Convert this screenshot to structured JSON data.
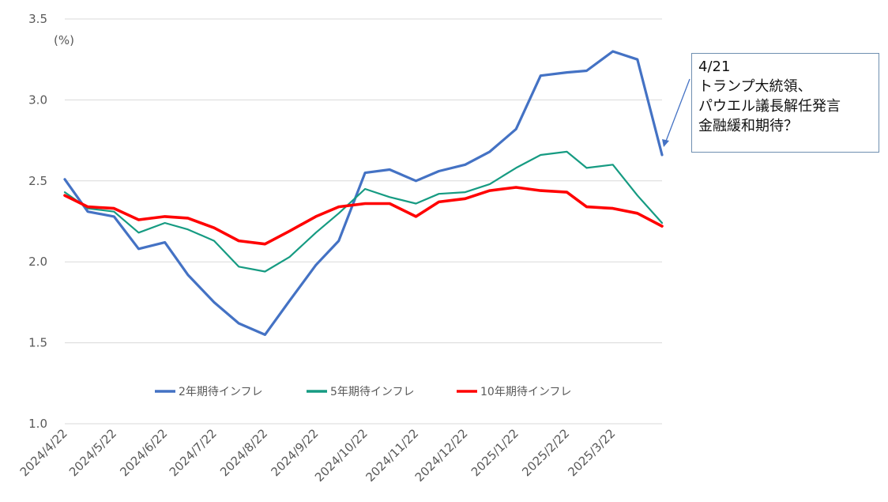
{
  "chart_data": {
    "type": "line",
    "unit_label": "(%)",
    "ylim": [
      1.0,
      3.5
    ],
    "yticks": [
      "3.5",
      "3.0",
      "2.5",
      "2.0",
      "1.5",
      "1.0"
    ],
    "grid": true,
    "legend_position": "bottom-inside",
    "x_tick_labels": [
      "2024/4/22",
      "2024/5/22",
      "2024/6/22",
      "2024/7/22",
      "2024/8/22",
      "2024/9/22",
      "2024/10/22",
      "2024/11/22",
      "2024/12/22",
      "2025/1/22",
      "2025/2/22",
      "2025/3/22"
    ],
    "x_sample_dates": [
      "2024/4/22",
      "2024/5/6",
      "2024/5/22",
      "2024/6/6",
      "2024/6/22",
      "2024/7/6",
      "2024/7/22",
      "2024/8/6",
      "2024/8/22",
      "2024/9/6",
      "2024/9/22",
      "2024/10/6",
      "2024/10/22",
      "2024/11/6",
      "2024/11/22",
      "2024/12/6",
      "2024/12/22",
      "2025/1/6",
      "2025/1/22",
      "2025/2/6",
      "2025/2/22",
      "2025/3/6",
      "2025/3/22",
      "2025/4/6",
      "2025/4/21"
    ],
    "series": [
      {
        "name": "2年期待インフレ",
        "color": "#4472c4",
        "values": [
          2.51,
          2.31,
          2.28,
          2.08,
          2.12,
          1.92,
          1.75,
          1.62,
          1.55,
          1.76,
          1.98,
          2.13,
          2.55,
          2.57,
          2.5,
          2.56,
          2.6,
          2.68,
          2.82,
          3.15,
          3.17,
          3.18,
          3.3,
          3.25,
          2.66
        ]
      },
      {
        "name": "5年期待インフレ",
        "color": "#169b82",
        "values": [
          2.43,
          2.33,
          2.31,
          2.18,
          2.24,
          2.2,
          2.13,
          1.97,
          1.94,
          2.03,
          2.18,
          2.3,
          2.45,
          2.4,
          2.36,
          2.42,
          2.43,
          2.48,
          2.58,
          2.66,
          2.68,
          2.58,
          2.6,
          2.41,
          2.24
        ]
      },
      {
        "name": "10年期待インフレ",
        "color": "#ff0000",
        "values": [
          2.41,
          2.34,
          2.33,
          2.26,
          2.28,
          2.27,
          2.21,
          2.13,
          2.11,
          2.19,
          2.28,
          2.34,
          2.36,
          2.36,
          2.28,
          2.37,
          2.39,
          2.44,
          2.46,
          2.44,
          2.43,
          2.34,
          2.33,
          2.3,
          2.22
        ]
      }
    ]
  },
  "callout": {
    "line1": "4/21",
    "line2": "トランプ大統領、",
    "line3": "パウエル議長解任発言",
    "line4": "金融緩和期待？"
  }
}
